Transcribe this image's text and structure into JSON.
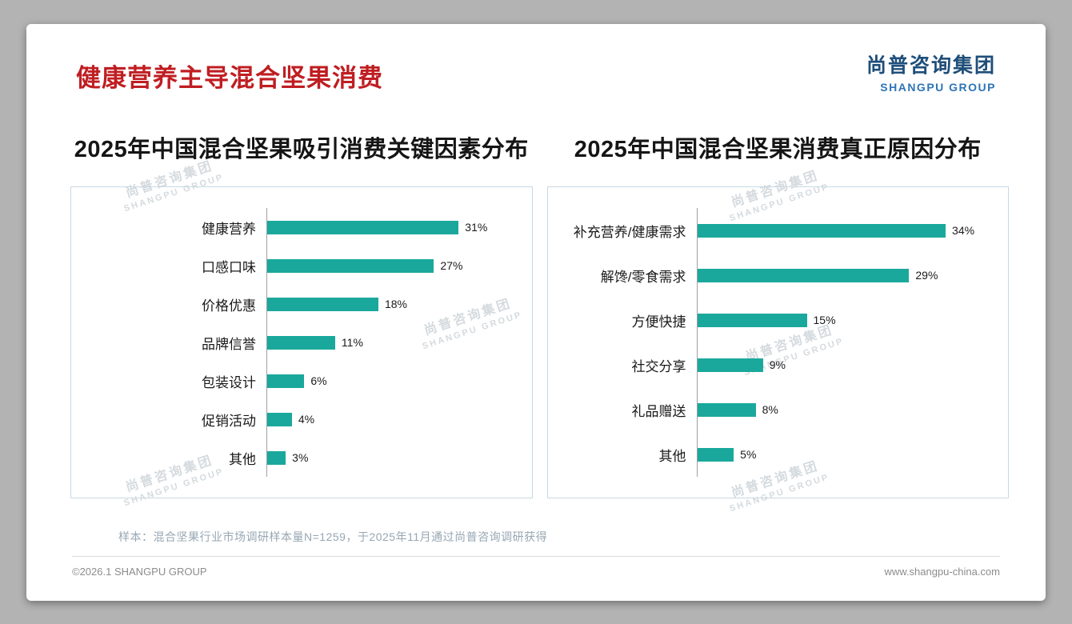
{
  "header": {
    "title": "健康营养主导混合坚果消费",
    "logo_cn": "尚普咨询集团",
    "logo_en": "SHANGPU GROUP"
  },
  "watermark": {
    "cn": "尚普咨询集团",
    "en": "SHANGPU GROUP"
  },
  "chart_data": [
    {
      "type": "bar",
      "orientation": "horizontal",
      "title": "2025年中国混合坚果吸引消费关键因素分布",
      "categories": [
        "健康营养",
        "口感口味",
        "价格优惠",
        "品牌信誉",
        "包装设计",
        "促销活动",
        "其他"
      ],
      "values": [
        31,
        27,
        18,
        11,
        6,
        4,
        3
      ],
      "unit": "%",
      "xlim": [
        0,
        41
      ],
      "grid": false,
      "legend": false,
      "bar_color": "#1aa89c"
    },
    {
      "type": "bar",
      "orientation": "horizontal",
      "title": "2025年中国混合坚果消费真正原因分布",
      "categories": [
        "补充营养/健康需求",
        "解馋/零食需求",
        "方便快捷",
        "社交分享",
        "礼品赠送",
        "其他"
      ],
      "values": [
        34,
        29,
        15,
        9,
        8,
        5
      ],
      "unit": "%",
      "xlim": [
        0,
        41
      ],
      "grid": false,
      "legend": false,
      "bar_color": "#1aa89c"
    }
  ],
  "footer": {
    "sample_note": "样本：混合坚果行业市场调研样本量N=1259，于2025年11月通过尚普咨询调研获得",
    "copyright": "©2026.1 SHANGPU GROUP",
    "website": "www.shangpu-china.com"
  },
  "colors": {
    "title_red": "#bf1e22",
    "bar_teal": "#1aa89c",
    "logo_blue_dark": "#1f4e79",
    "logo_blue_light": "#2e75b6"
  }
}
